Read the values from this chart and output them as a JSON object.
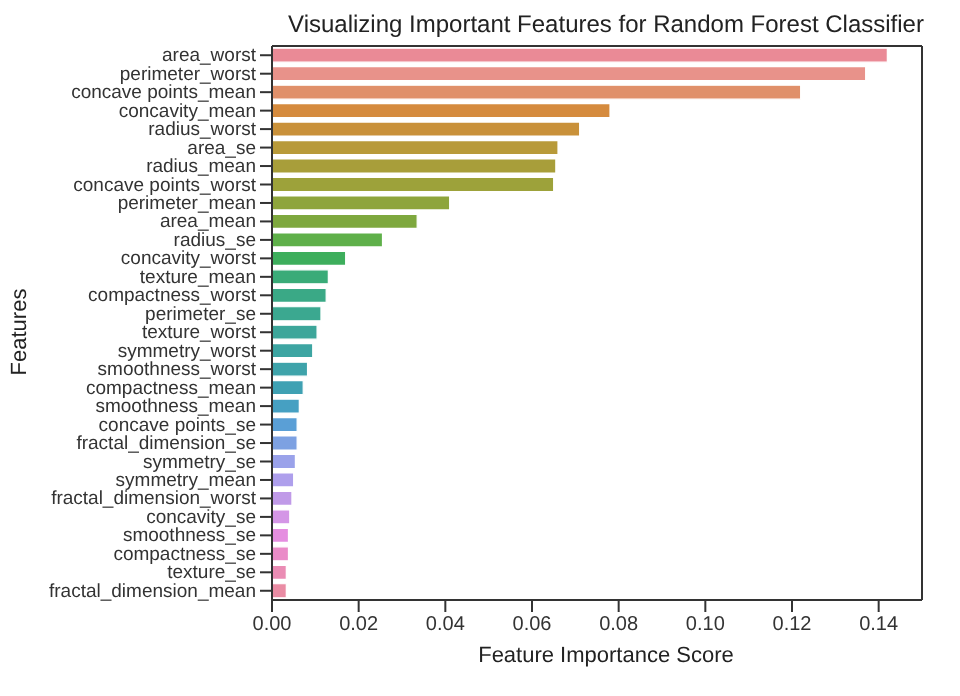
{
  "chart_data": {
    "type": "bar",
    "orientation": "horizontal",
    "title": "Visualizing Important Features for Random Forest Classifier",
    "xlabel": "Feature Importance Score",
    "ylabel": "Features",
    "categories": [
      "area_worst",
      "perimeter_worst",
      "concave points_mean",
      "concavity_mean",
      "radius_worst",
      "area_se",
      "radius_mean",
      "concave points_worst",
      "perimeter_mean",
      "area_mean",
      "radius_se",
      "concavity_worst",
      "texture_mean",
      "compactness_worst",
      "perimeter_se",
      "texture_worst",
      "symmetry_worst",
      "smoothness_worst",
      "compactness_mean",
      "smoothness_mean",
      "concave points_se",
      "fractal_dimension_se",
      "symmetry_se",
      "symmetry_mean",
      "fractal_dimension_worst",
      "concavity_se",
      "smoothness_se",
      "compactness_se",
      "texture_se",
      "fractal_dimension_mean"
    ],
    "values": [
      0.142,
      0.137,
      0.122,
      0.078,
      0.071,
      0.066,
      0.0655,
      0.065,
      0.041,
      0.0335,
      0.0255,
      0.017,
      0.013,
      0.0125,
      0.0113,
      0.0104,
      0.0094,
      0.0082,
      0.0072,
      0.0063,
      0.0058,
      0.0058,
      0.0054,
      0.005,
      0.0046,
      0.0041,
      0.0038,
      0.0038,
      0.0033,
      0.0033
    ],
    "colors": [
      "#ea8a96",
      "#e8928a",
      "#e0906a",
      "#d58b3e",
      "#c9913a",
      "#b89a3a",
      "#a89e3a",
      "#9da23a",
      "#8ea53c",
      "#7ea83e",
      "#5fb04a",
      "#3dae5c",
      "#3aab78",
      "#3aa986",
      "#3ba890",
      "#3ca69a",
      "#3da5a2",
      "#3ea3aa",
      "#3fa1b3",
      "#46a0c2",
      "#5a9fd6",
      "#7da1e2",
      "#9aa2ea",
      "#ae9fec",
      "#c09ae8",
      "#d496e6",
      "#e58ee0",
      "#ea8cc8",
      "#ea8cb4",
      "#ea8ca4"
    ],
    "xlim": [
      0,
      0.15
    ],
    "xticks": [
      {
        "value": 0,
        "label": "0.00"
      },
      0.02,
      0.04,
      0.06,
      0.08,
      {
        "value": 0.1,
        "label": "0.10"
      },
      0.12,
      0.14
    ]
  }
}
